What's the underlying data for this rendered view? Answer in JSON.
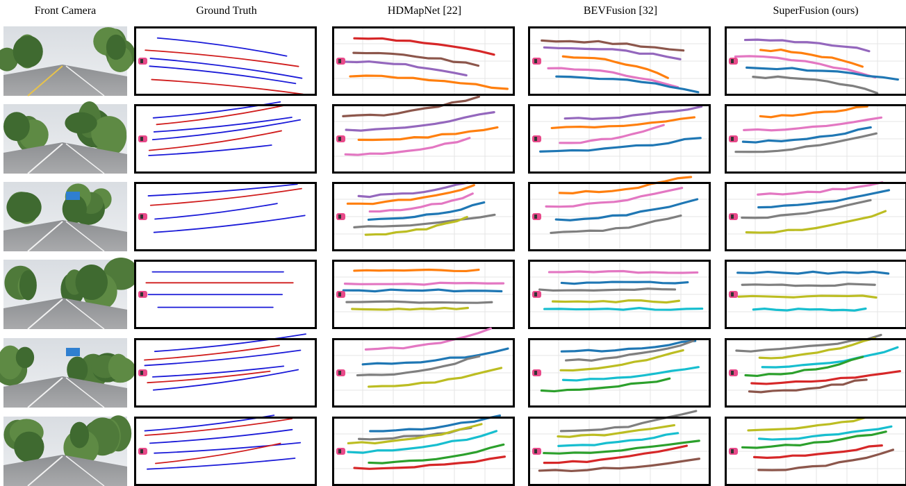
{
  "columns": [
    "Front Camera",
    "Ground Truth",
    "HDMapNet [22]",
    "BEVFusion [32]",
    "SuperFusion (ours)"
  ]
}
